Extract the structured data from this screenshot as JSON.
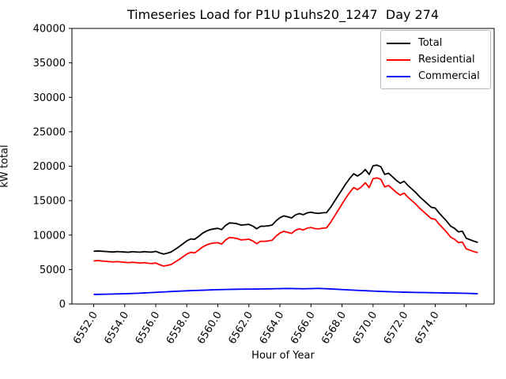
{
  "figure": {
    "background": "#ffffff"
  },
  "chart_data": {
    "type": "line",
    "title": "Timeseries Load for P1U p1uhs20_1247  Day 274",
    "xlabel": "Hour of Year",
    "ylabel": "kW total",
    "xlim": [
      6550.6,
      6577.8
    ],
    "ylim": [
      0,
      40000
    ],
    "grid": false,
    "legend_position": "upper right",
    "x_ticks": [
      {
        "v": 6552,
        "label": "6552.0"
      },
      {
        "v": 6554,
        "label": "6554.0"
      },
      {
        "v": 6556,
        "label": "6556.0"
      },
      {
        "v": 6558,
        "label": "6558.0"
      },
      {
        "v": 6560,
        "label": "6560.0"
      },
      {
        "v": 6562,
        "label": "6562.0"
      },
      {
        "v": 6564,
        "label": "6564.0"
      },
      {
        "v": 6566,
        "label": "6566.0"
      },
      {
        "v": 6568,
        "label": "6568.0"
      },
      {
        "v": 6570,
        "label": "6570.0"
      },
      {
        "v": 6572,
        "label": "6572.0"
      },
      {
        "v": 6574,
        "label": "6574.0"
      },
      {
        "v": 6576,
        "label": ""
      }
    ],
    "y_ticks": [
      {
        "v": 0,
        "label": "0"
      },
      {
        "v": 5000,
        "label": "5000"
      },
      {
        "v": 10000,
        "label": "10000"
      },
      {
        "v": 15000,
        "label": "15000"
      },
      {
        "v": 20000,
        "label": "20000"
      },
      {
        "v": 25000,
        "label": "25000"
      },
      {
        "v": 30000,
        "label": "30000"
      },
      {
        "v": 35000,
        "label": "35000"
      },
      {
        "v": 40000,
        "label": "40000"
      }
    ],
    "x": [
      6552.0,
      6552.25,
      6552.5,
      6552.75,
      6553.0,
      6553.25,
      6553.5,
      6553.75,
      6554.0,
      6554.25,
      6554.5,
      6554.75,
      6555.0,
      6555.25,
      6555.5,
      6555.75,
      6556.0,
      6556.25,
      6556.5,
      6556.75,
      6557.0,
      6557.25,
      6557.5,
      6557.75,
      6558.0,
      6558.25,
      6558.5,
      6558.75,
      6559.0,
      6559.25,
      6559.5,
      6559.75,
      6560.0,
      6560.25,
      6560.5,
      6560.75,
      6561.0,
      6561.25,
      6561.5,
      6561.75,
      6562.0,
      6562.25,
      6562.5,
      6562.75,
      6563.0,
      6563.25,
      6563.5,
      6563.75,
      6564.0,
      6564.25,
      6564.5,
      6564.75,
      6565.0,
      6565.25,
      6565.5,
      6565.75,
      6566.0,
      6566.25,
      6566.5,
      6566.75,
      6567.0,
      6567.25,
      6567.5,
      6567.75,
      6568.0,
      6568.25,
      6568.5,
      6568.75,
      6569.0,
      6569.25,
      6569.5,
      6569.75,
      6570.0,
      6570.25,
      6570.5,
      6570.75,
      6571.0,
      6571.25,
      6571.5,
      6571.75,
      6572.0,
      6572.25,
      6572.5,
      6572.75,
      6573.0,
      6573.25,
      6573.5,
      6573.75,
      6574.0,
      6574.25,
      6574.5,
      6574.75,
      6575.0,
      6575.25,
      6575.5,
      6575.75,
      6576.0,
      6576.25,
      6576.5,
      6576.75
    ],
    "series": [
      {
        "name": "Total",
        "color": "#000000",
        "values": [
          7650,
          7700,
          7660,
          7620,
          7580,
          7545,
          7610,
          7575,
          7540,
          7510,
          7590,
          7550,
          7525,
          7600,
          7550,
          7530,
          7640,
          7420,
          7250,
          7380,
          7560,
          7940,
          8315,
          8740,
          9165,
          9440,
          9380,
          9780,
          10250,
          10570,
          10790,
          10910,
          10980,
          10795,
          11410,
          11770,
          11730,
          11640,
          11450,
          11505,
          11560,
          11315,
          10920,
          11280,
          11290,
          11350,
          11460,
          12070,
          12530,
          12790,
          12650,
          12490,
          12930,
          13120,
          12960,
          13220,
          13330,
          13195,
          13155,
          13235,
          13265,
          13985,
          14855,
          15725,
          16595,
          17465,
          18235,
          18905,
          18575,
          18950,
          19525,
          18800,
          20075,
          20150,
          19925,
          18805,
          18985,
          18465,
          17945,
          17530,
          17815,
          17200,
          16690,
          16180,
          15570,
          15060,
          14550,
          14040,
          13930,
          13220,
          12610,
          12000,
          11290,
          10980,
          10470,
          10560,
          9545,
          9330,
          9110,
          8940
        ]
      },
      {
        "name": "Residential",
        "color": "#ff0000",
        "values": [
          6250,
          6300,
          6250,
          6200,
          6150,
          6100,
          6150,
          6100,
          6050,
          6000,
          6060,
          6000,
          5950,
          6000,
          5920,
          5870,
          5950,
          5700,
          5500,
          5600,
          5750,
          6100,
          6450,
          6850,
          7250,
          7500,
          7420,
          7800,
          8250,
          8550,
          8750,
          8850,
          8900,
          8700,
          9300,
          9650,
          9600,
          9500,
          9300,
          9350,
          9400,
          9150,
          8750,
          9100,
          9100,
          9150,
          9250,
          9850,
          10300,
          10550,
          10400,
          10250,
          10700,
          10900,
          10750,
          11000,
          11100,
          10950,
          10900,
          11000,
          11050,
          11800,
          12700,
          13600,
          14500,
          15400,
          16200,
          16900,
          16600,
          17000,
          17600,
          16900,
          18200,
          18300,
          18100,
          17000,
          17200,
          16700,
          16200,
          15800,
          16100,
          15500,
          15000,
          14500,
          13900,
          13400,
          12900,
          12400,
          12300,
          11600,
          11000,
          10400,
          9700,
          9400,
          8900,
          9000,
          8000,
          7800,
          7600,
          7450
        ]
      },
      {
        "name": "Commercial",
        "color": "#0000ff",
        "values": [
          1400,
          1400,
          1410,
          1420,
          1430,
          1445,
          1460,
          1475,
          1490,
          1510,
          1530,
          1550,
          1575,
          1600,
          1630,
          1660,
          1690,
          1720,
          1750,
          1780,
          1810,
          1840,
          1865,
          1890,
          1915,
          1940,
          1960,
          1980,
          2000,
          2020,
          2040,
          2060,
          2080,
          2095,
          2110,
          2120,
          2130,
          2140,
          2150,
          2155,
          2160,
          2165,
          2170,
          2180,
          2190,
          2200,
          2210,
          2220,
          2230,
          2240,
          2250,
          2240,
          2230,
          2220,
          2210,
          2220,
          2230,
          2245,
          2255,
          2235,
          2215,
          2185,
          2155,
          2125,
          2095,
          2065,
          2035,
          2005,
          1975,
          1950,
          1925,
          1900,
          1875,
          1850,
          1825,
          1805,
          1785,
          1765,
          1745,
          1730,
          1715,
          1700,
          1690,
          1680,
          1670,
          1660,
          1650,
          1640,
          1630,
          1620,
          1610,
          1600,
          1590,
          1580,
          1570,
          1560,
          1545,
          1530,
          1510,
          1490
        ]
      }
    ],
    "legend": {
      "entries": [
        {
          "label": "Total",
          "color": "#000000"
        },
        {
          "label": "Residential",
          "color": "#ff0000"
        },
        {
          "label": "Commercial",
          "color": "#0000ff"
        }
      ]
    }
  }
}
